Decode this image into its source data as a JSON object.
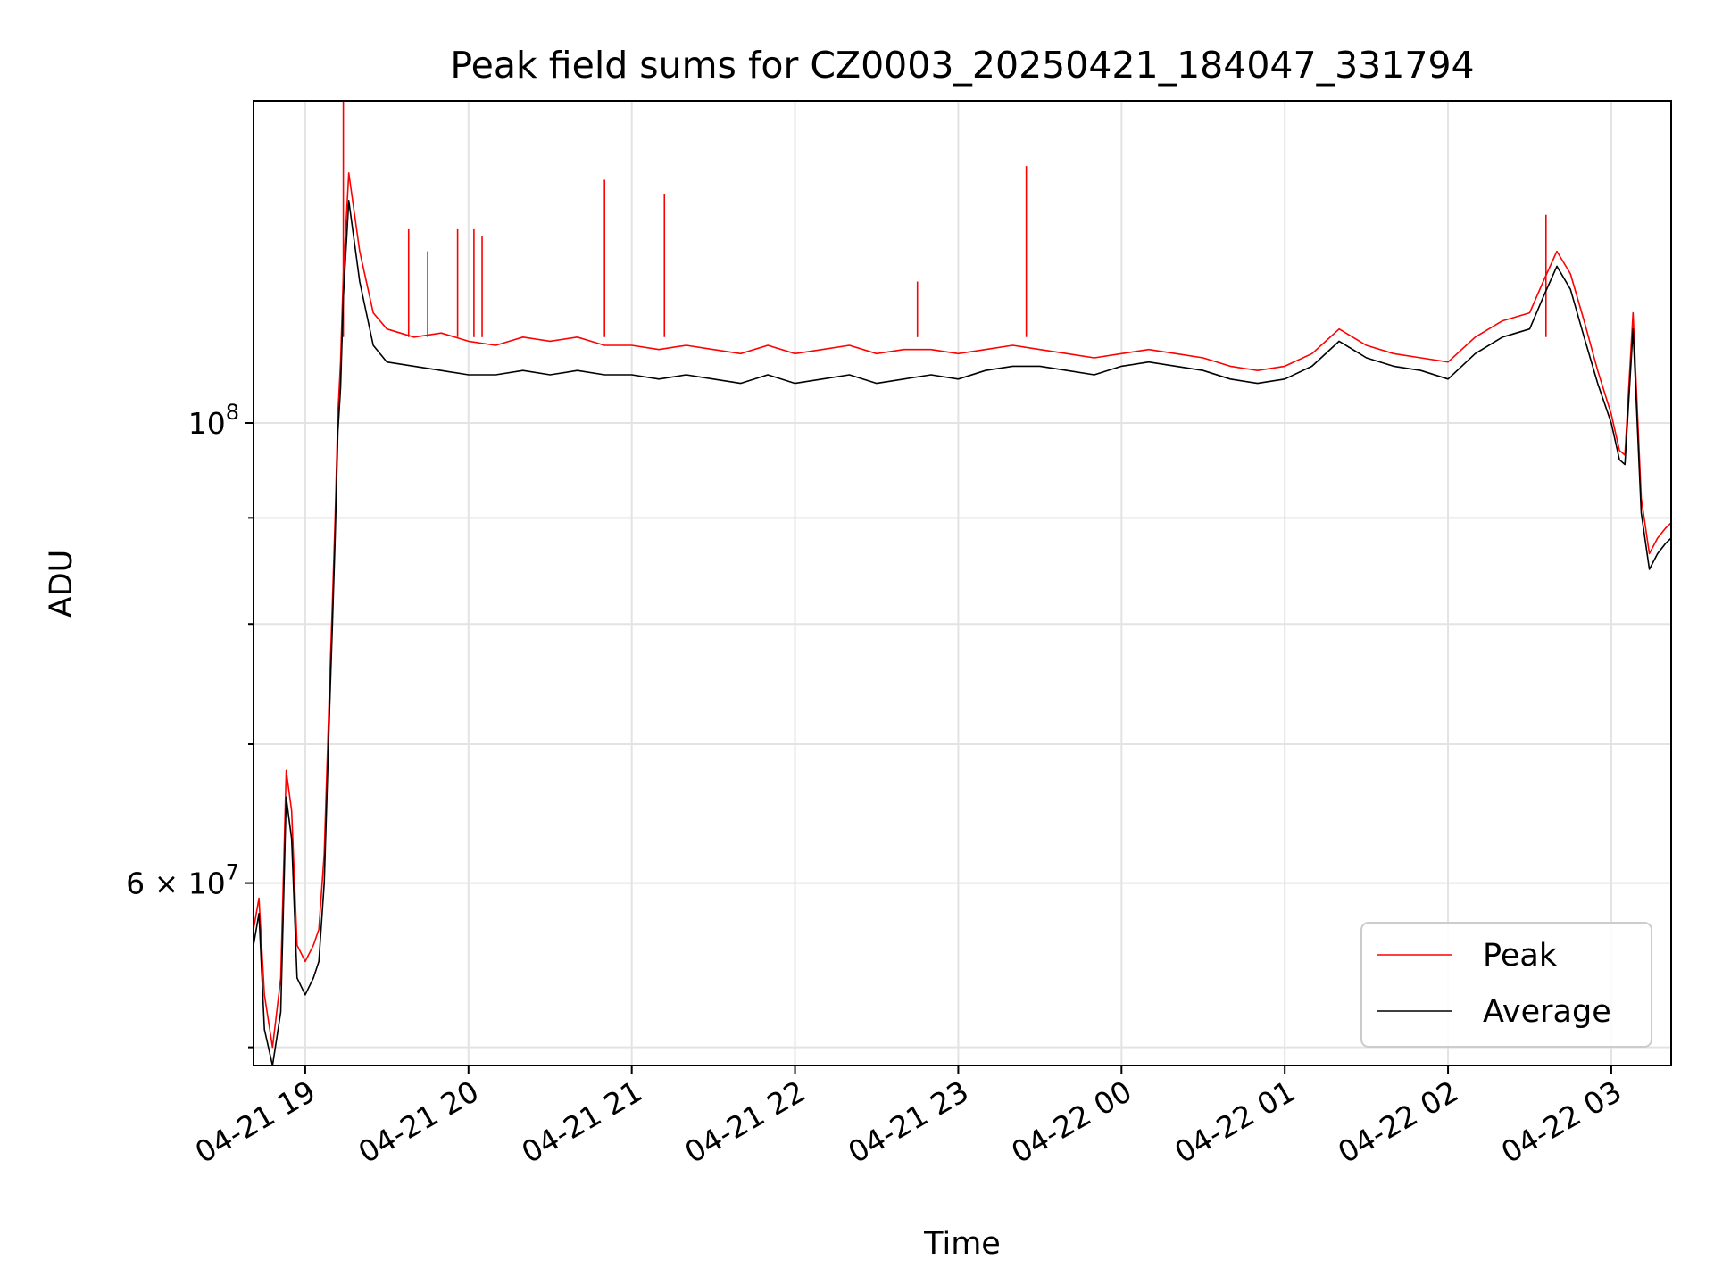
{
  "chart_data": {
    "type": "line",
    "title": "Peak field sums for CZ0003_20250421_184047_331794",
    "xlabel": "Time",
    "ylabel": "ADU",
    "y_scale": "log",
    "grid": true,
    "legend_position": "lower-right",
    "xlim": [
      "2025-04-21 18:41",
      "2025-04-22 03:22"
    ],
    "ylim": [
      49000000,
      143000000
    ],
    "x_ticks": [
      "04-21 19",
      "04-21 20",
      "04-21 21",
      "04-21 22",
      "04-21 23",
      "04-22 00",
      "04-22 01",
      "04-22 02",
      "04-22 03"
    ],
    "y_ticks": [
      {
        "value": 100000000,
        "mantissa": "",
        "exp": "8"
      },
      {
        "value": 60000000,
        "mantissa": "6 × ",
        "exp": "7"
      }
    ],
    "y_minor_ticks": [
      50000000,
      70000000,
      80000000,
      90000000
    ],
    "series": [
      {
        "name": "Peak",
        "color": "#ff0000",
        "x": [
          "2025-04-21 18:41",
          "2025-04-21 18:43",
          "2025-04-21 18:45",
          "2025-04-21 18:48",
          "2025-04-21 18:51",
          "2025-04-21 18:53",
          "2025-04-21 18:55",
          "2025-04-21 18:57",
          "2025-04-21 19:00",
          "2025-04-21 19:03",
          "2025-04-21 19:05",
          "2025-04-21 19:07",
          "2025-04-21 19:09",
          "2025-04-21 19:10",
          "2025-04-21 19:11",
          "2025-04-21 19:12",
          "2025-04-21 19:13",
          "2025-04-21 19:14",
          "2025-04-21 19:16",
          "2025-04-21 19:20",
          "2025-04-21 19:25",
          "2025-04-21 19:30",
          "2025-04-21 19:40",
          "2025-04-21 19:50",
          "2025-04-21 20:00",
          "2025-04-21 20:10",
          "2025-04-21 20:20",
          "2025-04-21 20:30",
          "2025-04-21 20:40",
          "2025-04-21 20:50",
          "2025-04-21 21:00",
          "2025-04-21 21:10",
          "2025-04-21 21:20",
          "2025-04-21 21:30",
          "2025-04-21 21:40",
          "2025-04-21 21:50",
          "2025-04-21 22:00",
          "2025-04-21 22:10",
          "2025-04-21 22:20",
          "2025-04-21 22:30",
          "2025-04-21 22:40",
          "2025-04-21 22:50",
          "2025-04-21 23:00",
          "2025-04-21 23:10",
          "2025-04-21 23:20",
          "2025-04-21 23:30",
          "2025-04-21 23:40",
          "2025-04-21 23:50",
          "2025-04-22 00:00",
          "2025-04-22 00:10",
          "2025-04-22 00:20",
          "2025-04-22 00:30",
          "2025-04-22 00:40",
          "2025-04-22 00:50",
          "2025-04-22 01:00",
          "2025-04-22 01:10",
          "2025-04-22 01:20",
          "2025-04-22 01:30",
          "2025-04-22 01:40",
          "2025-04-22 01:50",
          "2025-04-22 02:00",
          "2025-04-22 02:10",
          "2025-04-22 02:20",
          "2025-04-22 02:30",
          "2025-04-22 02:35",
          "2025-04-22 02:40",
          "2025-04-22 02:45",
          "2025-04-22 02:50",
          "2025-04-22 02:55",
          "2025-04-22 03:00",
          "2025-04-22 03:03",
          "2025-04-22 03:05",
          "2025-04-22 03:08",
          "2025-04-22 03:11",
          "2025-04-22 03:14",
          "2025-04-22 03:17",
          "2025-04-22 03:20",
          "2025-04-22 03:22"
        ],
        "y": [
          57000000,
          59000000,
          53000000,
          50000000,
          54000000,
          68000000,
          65000000,
          56000000,
          55000000,
          56000000,
          57000000,
          62000000,
          75000000,
          82000000,
          90000000,
          101000000,
          107000000,
          118000000,
          132000000,
          121000000,
          113000000,
          111000000,
          110000000,
          110500000,
          109500000,
          109000000,
          110000000,
          109500000,
          110000000,
          109000000,
          109000000,
          108500000,
          109000000,
          108500000,
          108000000,
          109000000,
          108000000,
          108500000,
          109000000,
          108000000,
          108500000,
          108500000,
          108000000,
          108500000,
          109000000,
          108500000,
          108000000,
          107500000,
          108000000,
          108500000,
          108000000,
          107500000,
          106500000,
          106000000,
          106500000,
          108000000,
          111000000,
          109000000,
          108000000,
          107500000,
          107000000,
          110000000,
          112000000,
          113000000,
          117000000,
          121000000,
          118000000,
          112000000,
          106000000,
          101000000,
          97000000,
          96500000,
          113000000,
          92000000,
          86500000,
          88000000,
          89000000,
          89500000
        ],
        "spikes": [
          {
            "x": "2025-04-21 19:14",
            "y": 143000000
          },
          {
            "x": "2025-04-21 19:38",
            "y": 124000000
          },
          {
            "x": "2025-04-21 19:45",
            "y": 121000000
          },
          {
            "x": "2025-04-21 19:56",
            "y": 124000000
          },
          {
            "x": "2025-04-21 20:02",
            "y": 124000000
          },
          {
            "x": "2025-04-21 20:05",
            "y": 123000000
          },
          {
            "x": "2025-04-21 20:50",
            "y": 131000000
          },
          {
            "x": "2025-04-21 21:12",
            "y": 129000000
          },
          {
            "x": "2025-04-21 22:45",
            "y": 117000000
          },
          {
            "x": "2025-04-21 23:25",
            "y": 133000000
          },
          {
            "x": "2025-04-22 02:36",
            "y": 126000000
          }
        ]
      },
      {
        "name": "Average",
        "color": "#000000",
        "x": [
          "2025-04-21 18:41",
          "2025-04-21 18:43",
          "2025-04-21 18:45",
          "2025-04-21 18:48",
          "2025-04-21 18:51",
          "2025-04-21 18:53",
          "2025-04-21 18:55",
          "2025-04-21 18:57",
          "2025-04-21 19:00",
          "2025-04-21 19:03",
          "2025-04-21 19:05",
          "2025-04-21 19:07",
          "2025-04-21 19:09",
          "2025-04-21 19:10",
          "2025-04-21 19:11",
          "2025-04-21 19:12",
          "2025-04-21 19:13",
          "2025-04-21 19:14",
          "2025-04-21 19:16",
          "2025-04-21 19:20",
          "2025-04-21 19:25",
          "2025-04-21 19:30",
          "2025-04-21 19:40",
          "2025-04-21 19:50",
          "2025-04-21 20:00",
          "2025-04-21 20:10",
          "2025-04-21 20:20",
          "2025-04-21 20:30",
          "2025-04-21 20:40",
          "2025-04-21 20:50",
          "2025-04-21 21:00",
          "2025-04-21 21:10",
          "2025-04-21 21:20",
          "2025-04-21 21:30",
          "2025-04-21 21:40",
          "2025-04-21 21:50",
          "2025-04-21 22:00",
          "2025-04-21 22:10",
          "2025-04-21 22:20",
          "2025-04-21 22:30",
          "2025-04-21 22:40",
          "2025-04-21 22:50",
          "2025-04-21 23:00",
          "2025-04-21 23:10",
          "2025-04-21 23:20",
          "2025-04-21 23:30",
          "2025-04-21 23:40",
          "2025-04-21 23:50",
          "2025-04-22 00:00",
          "2025-04-22 00:10",
          "2025-04-22 00:20",
          "2025-04-22 00:30",
          "2025-04-22 00:40",
          "2025-04-22 00:50",
          "2025-04-22 01:00",
          "2025-04-22 01:10",
          "2025-04-22 01:20",
          "2025-04-22 01:30",
          "2025-04-22 01:40",
          "2025-04-22 01:50",
          "2025-04-22 02:00",
          "2025-04-22 02:10",
          "2025-04-22 02:20",
          "2025-04-22 02:30",
          "2025-04-22 02:35",
          "2025-04-22 02:40",
          "2025-04-22 02:45",
          "2025-04-22 02:50",
          "2025-04-22 02:55",
          "2025-04-22 03:00",
          "2025-04-22 03:03",
          "2025-04-22 03:05",
          "2025-04-22 03:08",
          "2025-04-22 03:11",
          "2025-04-22 03:14",
          "2025-04-22 03:17",
          "2025-04-22 03:20",
          "2025-04-22 03:22"
        ],
        "y": [
          56000000,
          58000000,
          51000000,
          49000000,
          52000000,
          66000000,
          63000000,
          54000000,
          53000000,
          54000000,
          55000000,
          60000000,
          73000000,
          80000000,
          88000000,
          99000000,
          104000000,
          115000000,
          128000000,
          117000000,
          109000000,
          107000000,
          106500000,
          106000000,
          105500000,
          105500000,
          106000000,
          105500000,
          106000000,
          105500000,
          105500000,
          105000000,
          105500000,
          105000000,
          104500000,
          105500000,
          104500000,
          105000000,
          105500000,
          104500000,
          105000000,
          105500000,
          105000000,
          106000000,
          106500000,
          106500000,
          106000000,
          105500000,
          106500000,
          107000000,
          106500000,
          106000000,
          105000000,
          104500000,
          105000000,
          106500000,
          109500000,
          107500000,
          106500000,
          106000000,
          105000000,
          108000000,
          110000000,
          111000000,
          115000000,
          119000000,
          116000000,
          110000000,
          104500000,
          100000000,
          96000000,
          95500000,
          111000000,
          90500000,
          85000000,
          86500000,
          87500000,
          88000000
        ]
      }
    ]
  }
}
